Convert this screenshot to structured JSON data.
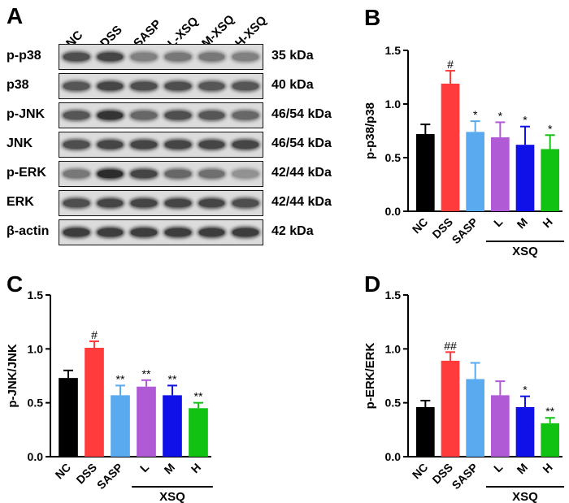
{
  "panels": {
    "A": "A",
    "B": "B",
    "C": "C",
    "D": "D"
  },
  "blot": {
    "lanes": [
      "NC",
      "DSS",
      "SASP",
      "L-XSQ",
      "M-XSQ",
      "H-XSQ"
    ],
    "rows": [
      {
        "protein": "p-p38",
        "kda": "35 kDa",
        "intensity": [
          0.75,
          0.8,
          0.45,
          0.5,
          0.5,
          0.45
        ]
      },
      {
        "protein": "p38",
        "kda": "40 kDa",
        "intensity": [
          0.7,
          0.8,
          0.75,
          0.75,
          0.7,
          0.7
        ]
      },
      {
        "protein": "p-JNK",
        "kda": "46/54 kDa",
        "intensity": [
          0.7,
          0.9,
          0.6,
          0.75,
          0.7,
          0.6
        ]
      },
      {
        "protein": "JNK",
        "kda": "46/54 kDa",
        "intensity": [
          0.75,
          0.8,
          0.8,
          0.8,
          0.8,
          0.8
        ]
      },
      {
        "protein": "p-ERK",
        "kda": "42/44 kDa",
        "intensity": [
          0.5,
          0.95,
          0.8,
          0.6,
          0.55,
          0.35
        ]
      },
      {
        "protein": "ERK",
        "kda": "42/44 kDa",
        "intensity": [
          0.75,
          0.8,
          0.8,
          0.8,
          0.8,
          0.75
        ]
      },
      {
        "protein": "β-actin",
        "kda": "42 kDa",
        "intensity": [
          0.85,
          0.85,
          0.85,
          0.85,
          0.85,
          0.85
        ]
      }
    ]
  },
  "chart_data": [
    {
      "panel": "B",
      "type": "bar",
      "categories": [
        "NC",
        "DSS",
        "SASP",
        "L",
        "M",
        "H"
      ],
      "group_label": "XSQ",
      "values": [
        0.72,
        1.19,
        0.74,
        0.69,
        0.62,
        0.58
      ],
      "errors": [
        0.09,
        0.12,
        0.1,
        0.14,
        0.17,
        0.13
      ],
      "significance": [
        "",
        "#",
        "*",
        "*",
        "*",
        "*"
      ],
      "ylabel": "p-p38/p38",
      "ylim": [
        0,
        1.5
      ],
      "yticks": [
        "0.0",
        "0.5",
        "1.0",
        "1.5"
      ],
      "colors": [
        "#000000",
        "#ff3b3b",
        "#5aaaf0",
        "#b05ad6",
        "#1010e8",
        "#12c212"
      ]
    },
    {
      "panel": "C",
      "type": "bar",
      "categories": [
        "NC",
        "DSS",
        "SASP",
        "L",
        "M",
        "H"
      ],
      "group_label": "XSQ",
      "values": [
        0.73,
        1.01,
        0.57,
        0.65,
        0.57,
        0.45
      ],
      "errors": [
        0.07,
        0.06,
        0.09,
        0.06,
        0.09,
        0.05
      ],
      "significance": [
        "",
        "#",
        "**",
        "**",
        "**",
        "**"
      ],
      "ylabel": "p-JNK/JNK",
      "ylim": [
        0,
        1.5
      ],
      "yticks": [
        "0.0",
        "0.5",
        "1.0",
        "1.5"
      ],
      "colors": [
        "#000000",
        "#ff3b3b",
        "#5aaaf0",
        "#b05ad6",
        "#1010e8",
        "#12c212"
      ]
    },
    {
      "panel": "D",
      "type": "bar",
      "categories": [
        "NC",
        "DSS",
        "SASP",
        "L",
        "M",
        "H"
      ],
      "group_label": "XSQ",
      "values": [
        0.46,
        0.89,
        0.72,
        0.57,
        0.46,
        0.31
      ],
      "errors": [
        0.06,
        0.08,
        0.15,
        0.13,
        0.1,
        0.05
      ],
      "significance": [
        "",
        "##",
        "",
        "",
        "*",
        "**"
      ],
      "ylabel": "p-ERK/ERK",
      "ylim": [
        0,
        1.5
      ],
      "yticks": [
        "0.0",
        "0.5",
        "1.0",
        "1.5"
      ],
      "colors": [
        "#000000",
        "#ff3b3b",
        "#5aaaf0",
        "#b05ad6",
        "#1010e8",
        "#12c212"
      ]
    }
  ]
}
